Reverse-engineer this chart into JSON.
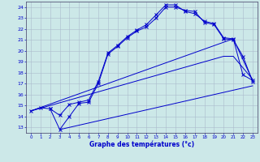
{
  "xlabel": "Graphe des températures (°c)",
  "xlim": [
    -0.5,
    23.5
  ],
  "ylim": [
    12.5,
    24.5
  ],
  "xticks": [
    0,
    1,
    2,
    3,
    4,
    5,
    6,
    7,
    8,
    9,
    10,
    11,
    12,
    13,
    14,
    15,
    16,
    17,
    18,
    19,
    20,
    21,
    22,
    23
  ],
  "yticks": [
    13,
    14,
    15,
    16,
    17,
    18,
    19,
    20,
    21,
    22,
    23,
    24
  ],
  "background_color": "#cce8e8",
  "grid_color": "#aabbcc",
  "line_color": "#0000cc",
  "line1_x": [
    0,
    1,
    2,
    3,
    4,
    5,
    6,
    7,
    8,
    9,
    10,
    11,
    12,
    13,
    14,
    15,
    16,
    17,
    18,
    19,
    20,
    21,
    22,
    23
  ],
  "line1_y": [
    14.5,
    14.8,
    14.7,
    14.1,
    15.1,
    15.3,
    15.5,
    17.2,
    19.8,
    20.5,
    21.3,
    21.9,
    22.4,
    23.3,
    24.2,
    24.2,
    23.6,
    23.4,
    22.7,
    22.5,
    21.2,
    21.1,
    17.8,
    17.3
  ],
  "line2_x": [
    2,
    3,
    4,
    5,
    6,
    7,
    8,
    9,
    10,
    11,
    12,
    13,
    14,
    15,
    16,
    17,
    18,
    19,
    20,
    21,
    22,
    23
  ],
  "line2_y": [
    14.7,
    12.8,
    14.0,
    15.2,
    15.3,
    17.0,
    19.7,
    20.4,
    21.2,
    21.8,
    22.2,
    23.0,
    24.0,
    24.0,
    23.7,
    23.6,
    22.6,
    22.4,
    21.1,
    21.0,
    19.5,
    17.2
  ],
  "line3_x": [
    0,
    20,
    21,
    23
  ],
  "line3_y": [
    14.5,
    19.5,
    19.5,
    17.4
  ],
  "line4_x": [
    0,
    21,
    23
  ],
  "line4_y": [
    14.5,
    21.1,
    17.3
  ],
  "line5_x": [
    3,
    23
  ],
  "line5_y": [
    12.8,
    16.8
  ]
}
